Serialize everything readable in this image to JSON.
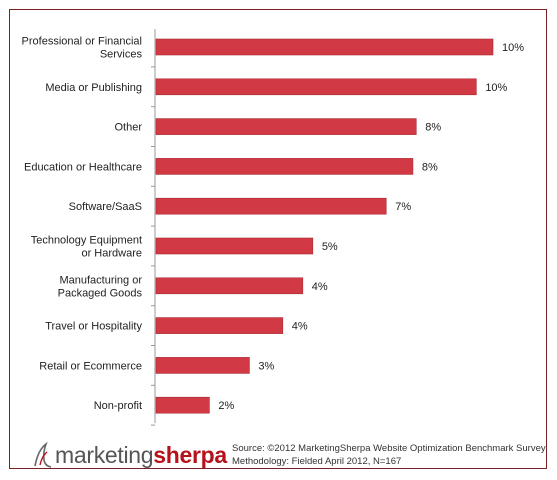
{
  "chart_data": {
    "type": "bar",
    "orientation": "horizontal",
    "categories": [
      "Professional or Financial Services",
      "Media or Publishing",
      "Other",
      "Education or Healthcare",
      "Software/SaaS",
      "Technology Equipment or Hardware",
      "Manufacturing or Packaged Goods",
      "Travel or Hospitality",
      "Retail or Ecommerce",
      "Non-profit"
    ],
    "category_lines": [
      [
        "Professional or Financial",
        "Services"
      ],
      [
        "Media or Publishing"
      ],
      [
        "Other"
      ],
      [
        "Education or Healthcare"
      ],
      [
        "Software/SaaS"
      ],
      [
        "Technology Equipment",
        "or Hardware"
      ],
      [
        "Manufacturing or",
        "Packaged Goods"
      ],
      [
        "Travel or Hospitality"
      ],
      [
        "Retail or Ecommerce"
      ],
      [
        "Non-profit"
      ]
    ],
    "values": [
      10.1,
      9.6,
      7.8,
      7.7,
      6.9,
      4.7,
      4.4,
      3.8,
      2.8,
      1.6
    ],
    "data_labels": [
      "10%",
      "10%",
      "8%",
      "8%",
      "7%",
      "5%",
      "4%",
      "4%",
      "3%",
      "2%"
    ],
    "xlim": [
      0,
      10.1
    ],
    "grid": false,
    "legend": "none",
    "colors": {
      "bar": "#d13a44",
      "bar_edge": "#a82a33",
      "frame": "#7a1f24",
      "axis": "#999999"
    }
  },
  "footer": {
    "logo": {
      "part1": "marketing",
      "part2": "sherpa",
      "accent": "#b5121b"
    },
    "source_line": "Source: ©2012 MarketingSherpa Website Optimization Benchmark Survey",
    "methodology_line": "Methodology: Fielded April 2012, N=167"
  }
}
